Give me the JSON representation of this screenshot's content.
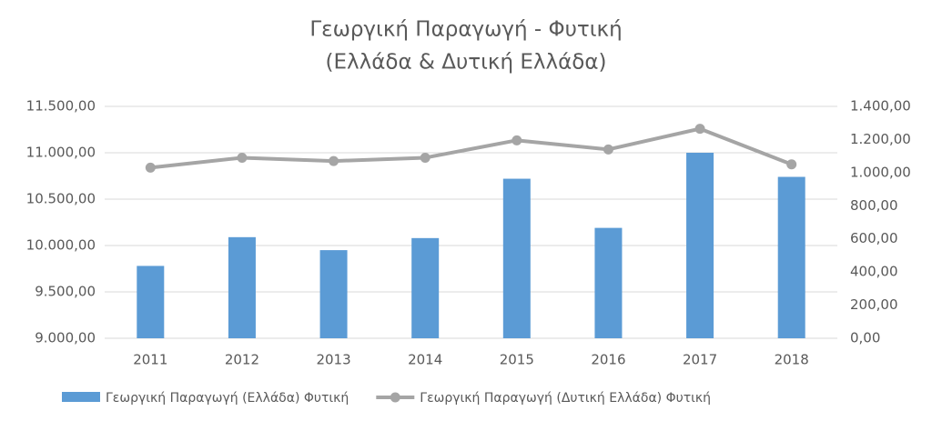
{
  "chart_data": {
    "type": "bar-line",
    "title": [
      "Γεωργική Παραγωγή - Φυτική",
      "(Ελλάδα & Δυτική Ελλάδα)"
    ],
    "categories": [
      "2011",
      "2012",
      "2013",
      "2014",
      "2015",
      "2016",
      "2017",
      "2018"
    ],
    "series": [
      {
        "name": "Γεωργική Παραγωγή (Ελλάδα) Φυτική",
        "type": "bar",
        "color": "#5b9bd5",
        "values": [
          9780,
          10090,
          9950,
          10080,
          10720,
          10190,
          11000,
          10740
        ]
      },
      {
        "name": "Γεωργική Παραγωγή (Δυτική Ελλάδα) Φυτική",
        "type": "line",
        "axis": "y2",
        "color": "#a5a5a5",
        "values": [
          1030,
          1090,
          1070,
          1090,
          1195,
          1140,
          1265,
          1050
        ]
      }
    ],
    "ylim": [
      9000,
      11500
    ],
    "yticks": [
      {
        "value": 9000,
        "label": "9.000,00"
      },
      {
        "value": 9500,
        "label": "9.500,00"
      },
      {
        "value": 10000,
        "label": "10.000,00"
      },
      {
        "value": 10500,
        "label": "10.500,00"
      },
      {
        "value": 11000,
        "label": "11.000,00"
      },
      {
        "value": 11500,
        "label": "11.500,00"
      }
    ],
    "y2lim": [
      0,
      1400
    ],
    "y2ticks": [
      {
        "value": 0,
        "label": "0,00"
      },
      {
        "value": 200,
        "label": "200,00"
      },
      {
        "value": 400,
        "label": "400,00"
      },
      {
        "value": 600,
        "label": "600,00"
      },
      {
        "value": 800,
        "label": "800,00"
      },
      {
        "value": 1000,
        "label": "1.000,00"
      },
      {
        "value": 1200,
        "label": "1.200,00"
      },
      {
        "value": 1400,
        "label": "1.400,00"
      }
    ],
    "grid": true,
    "legend": "bottom"
  }
}
